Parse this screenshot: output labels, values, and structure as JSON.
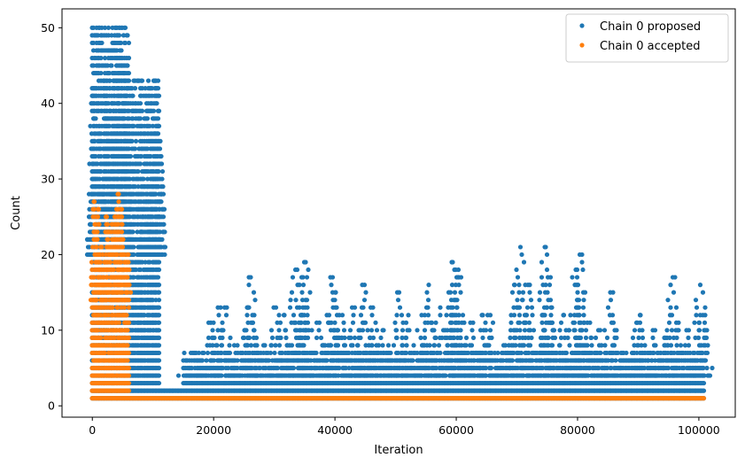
{
  "chart_data": {
    "type": "scatter",
    "title": "",
    "xlabel": "Iteration",
    "ylabel": "Count",
    "xlim": [
      -5000,
      106000
    ],
    "ylim": [
      -1.5,
      52.5
    ],
    "xticks": [
      0,
      20000,
      40000,
      60000,
      80000,
      100000
    ],
    "xtick_labels": [
      "0",
      "20000",
      "40000",
      "60000",
      "80000",
      "100000"
    ],
    "yticks": [
      0,
      10,
      20,
      30,
      40,
      50
    ],
    "ytick_labels": [
      "0",
      "10",
      "20",
      "30",
      "40",
      "50"
    ],
    "grid": false,
    "legend_position": "top-right",
    "series": [
      {
        "name": "Chain 0 proposed",
        "color": "#1f77b4",
        "segments": [
          {
            "x_start": 0,
            "x_end": 6000,
            "y_min": 1,
            "y_max": 50
          },
          {
            "x_start": 6000,
            "x_end": 11000,
            "y_min": 1,
            "y_max": 43
          },
          {
            "x_start": 11000,
            "x_end": 15000,
            "y_min": 1,
            "y_max": 2
          },
          {
            "x_start": 15000,
            "x_end": 101000,
            "y_min": 1,
            "y_max": 7
          }
        ],
        "peaks": [
          {
            "x": 0,
            "y": 41
          },
          {
            "x": 300,
            "y": 34
          },
          {
            "x": 1200,
            "y": 37
          },
          {
            "x": 1800,
            "y": 41
          },
          {
            "x": 2300,
            "y": 45
          },
          {
            "x": 2600,
            "y": 47
          },
          {
            "x": 3200,
            "y": 40
          },
          {
            "x": 3700,
            "y": 43
          },
          {
            "x": 3900,
            "y": 50
          },
          {
            "x": 4500,
            "y": 50
          },
          {
            "x": 4700,
            "y": 48
          },
          {
            "x": 5200,
            "y": 44
          },
          {
            "x": 5500,
            "y": 45
          },
          {
            "x": 5800,
            "y": 37
          },
          {
            "x": 8200,
            "y": 25
          },
          {
            "x": 8800,
            "y": 31
          },
          {
            "x": 9300,
            "y": 33
          },
          {
            "x": 10100,
            "y": 31
          },
          {
            "x": 10400,
            "y": 43
          },
          {
            "x": 10800,
            "y": 37
          },
          {
            "x": 11200,
            "y": 35
          },
          {
            "x": 15700,
            "y": 5
          },
          {
            "x": 17600,
            "y": 7
          },
          {
            "x": 19200,
            "y": 11
          },
          {
            "x": 20700,
            "y": 13
          },
          {
            "x": 21800,
            "y": 13
          },
          {
            "x": 23900,
            "y": 8
          },
          {
            "x": 25600,
            "y": 13
          },
          {
            "x": 26100,
            "y": 17
          },
          {
            "x": 28200,
            "y": 8
          },
          {
            "x": 30300,
            "y": 13
          },
          {
            "x": 31600,
            "y": 12
          },
          {
            "x": 33500,
            "y": 18
          },
          {
            "x": 34700,
            "y": 17
          },
          {
            "x": 35200,
            "y": 19
          },
          {
            "x": 37400,
            "y": 11
          },
          {
            "x": 39600,
            "y": 17
          },
          {
            "x": 40100,
            "y": 15
          },
          {
            "x": 41200,
            "y": 12
          },
          {
            "x": 43300,
            "y": 13
          },
          {
            "x": 44900,
            "y": 16
          },
          {
            "x": 46300,
            "y": 13
          },
          {
            "x": 47900,
            "y": 10
          },
          {
            "x": 50600,
            "y": 15
          },
          {
            "x": 52100,
            "y": 12
          },
          {
            "x": 54300,
            "y": 12
          },
          {
            "x": 55500,
            "y": 16
          },
          {
            "x": 57400,
            "y": 13
          },
          {
            "x": 59400,
            "y": 19
          },
          {
            "x": 59900,
            "y": 18
          },
          {
            "x": 60300,
            "y": 17
          },
          {
            "x": 62300,
            "y": 11
          },
          {
            "x": 64200,
            "y": 12
          },
          {
            "x": 65600,
            "y": 12
          },
          {
            "x": 68100,
            "y": 8
          },
          {
            "x": 69600,
            "y": 16
          },
          {
            "x": 70600,
            "y": 21
          },
          {
            "x": 72100,
            "y": 16
          },
          {
            "x": 74600,
            "y": 21
          },
          {
            "x": 75100,
            "y": 17
          },
          {
            "x": 77700,
            "y": 12
          },
          {
            "x": 79700,
            "y": 18
          },
          {
            "x": 80400,
            "y": 20
          },
          {
            "x": 81600,
            "y": 11
          },
          {
            "x": 83400,
            "y": 10
          },
          {
            "x": 85400,
            "y": 15
          },
          {
            "x": 87600,
            "y": 7
          },
          {
            "x": 89700,
            "y": 11
          },
          {
            "x": 90400,
            "y": 12
          },
          {
            "x": 92800,
            "y": 10
          },
          {
            "x": 94300,
            "y": 9
          },
          {
            "x": 95700,
            "y": 17
          },
          {
            "x": 96200,
            "y": 10
          },
          {
            "x": 98300,
            "y": 10
          },
          {
            "x": 100200,
            "y": 16
          },
          {
            "x": 100700,
            "y": 12
          }
        ]
      },
      {
        "name": "Chain 0 accepted",
        "color": "#ff7f0e",
        "segments": [
          {
            "x_start": 0,
            "x_end": 6000,
            "y_min": 1,
            "y_max": 18
          },
          {
            "x_start": 6000,
            "x_end": 101000,
            "y_min": 1,
            "y_max": 1
          }
        ],
        "peaks": [
          {
            "x": 300,
            "y": 27
          },
          {
            "x": 900,
            "y": 26
          },
          {
            "x": 1300,
            "y": 20
          },
          {
            "x": 1500,
            "y": 21
          },
          {
            "x": 2300,
            "y": 25
          },
          {
            "x": 2600,
            "y": 23
          },
          {
            "x": 3200,
            "y": 24
          },
          {
            "x": 3700,
            "y": 25
          },
          {
            "x": 3900,
            "y": 22
          },
          {
            "x": 4200,
            "y": 28
          },
          {
            "x": 4500,
            "y": 19
          },
          {
            "x": 4700,
            "y": 26
          },
          {
            "x": 5000,
            "y": 22
          },
          {
            "x": 5300,
            "y": 20
          },
          {
            "x": 5500,
            "y": 19
          },
          {
            "x": 1000,
            "y": 19
          },
          {
            "x": 2000,
            "y": 19
          },
          {
            "x": 5800,
            "y": 20
          }
        ]
      }
    ]
  }
}
